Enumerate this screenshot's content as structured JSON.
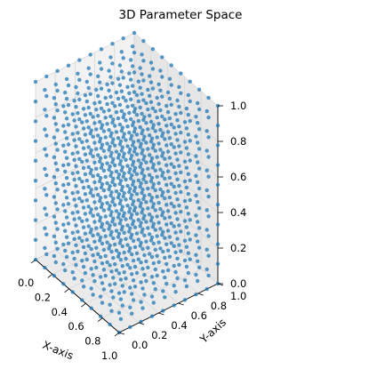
{
  "chart_data": {
    "type": "scatter",
    "projection": "3d",
    "title": "3D Parameter Space",
    "xlabel": "X-axis",
    "ylabel": "Y-axis",
    "zlabel": "",
    "xlim": [
      0,
      1
    ],
    "ylim": [
      0,
      1
    ],
    "zlim": [
      0,
      1
    ],
    "xticks": [
      "0.0",
      "0.2",
      "0.4",
      "0.6",
      "0.8",
      "1.0"
    ],
    "yticks": [
      "0.0",
      "0.2",
      "0.4",
      "0.6",
      "0.8",
      "1.0"
    ],
    "zticks": [
      "0.0",
      "0.2",
      "0.4",
      "0.6",
      "0.8",
      "1.0"
    ],
    "grid": true,
    "marker_color": "#1f77b4",
    "grid_description": "regular lattice of points, 10 levels per axis from 0.0 to 1.0 inclusive",
    "levels": [
      0.0,
      0.111,
      0.222,
      0.333,
      0.444,
      0.556,
      0.667,
      0.778,
      0.889,
      1.0
    ]
  }
}
